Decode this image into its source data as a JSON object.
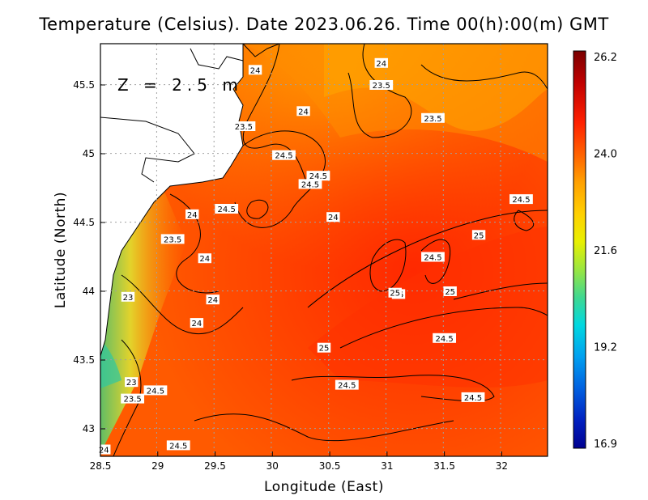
{
  "title": "Temperature (Celsius). Date 2023.06.26. Time 00(h):00(m) GMT",
  "depth_label": "Z = 2.5 m",
  "x_label": "Longitude (East)",
  "y_label": "Latitude (North)",
  "x_ticks": [
    {
      "value": 28.5,
      "label": "28.5"
    },
    {
      "value": 29,
      "label": "29"
    },
    {
      "value": 29.5,
      "label": "29.5"
    },
    {
      "value": 30,
      "label": "30"
    },
    {
      "value": 30.5,
      "label": "30.5"
    },
    {
      "value": 31,
      "label": "31"
    },
    {
      "value": 31.5,
      "label": "31.5"
    },
    {
      "value": 32,
      "label": "32"
    }
  ],
  "y_ticks": [
    {
      "value": 43,
      "label": "43"
    },
    {
      "value": 43.5,
      "label": "43.5"
    },
    {
      "value": 44,
      "label": "44"
    },
    {
      "value": 44.5,
      "label": "44.5"
    },
    {
      "value": 45,
      "label": "45"
    },
    {
      "value": 45.5,
      "label": "45.5"
    }
  ],
  "colorbar": {
    "ticks": [
      "26.2",
      "24.0",
      "21.6",
      "19.2",
      "16.9"
    ],
    "colors": [
      "#7a0000",
      "#c00000",
      "#ff2000",
      "#ff6a00",
      "#ffa000",
      "#ffd000",
      "#e8f000",
      "#9ae640",
      "#40d890",
      "#00d8e0",
      "#00a0f0",
      "#0060e0",
      "#0020c0",
      "#000090"
    ]
  },
  "chart_data": {
    "type": "heatmap",
    "variable": "Temperature (Celsius)",
    "xlim": [
      28.5,
      32.4
    ],
    "ylim": [
      42.8,
      45.8
    ],
    "color_range": [
      16.9,
      26.2
    ],
    "contour_labels": [
      {
        "lon": 29.85,
        "lat": 45.61,
        "value": "24"
      },
      {
        "lon": 29.75,
        "lat": 45.2,
        "value": "23.5"
      },
      {
        "lon": 30.1,
        "lat": 44.99,
        "value": "24.5"
      },
      {
        "lon": 30.4,
        "lat": 44.84,
        "value": "24.5"
      },
      {
        "lon": 30.33,
        "lat": 44.78,
        "value": "24.5"
      },
      {
        "lon": 29.6,
        "lat": 44.6,
        "value": "24.5"
      },
      {
        "lon": 29.3,
        "lat": 44.56,
        "value": "24"
      },
      {
        "lon": 30.27,
        "lat": 45.31,
        "value": "24"
      },
      {
        "lon": 30.95,
        "lat": 45.66,
        "value": "24"
      },
      {
        "lon": 30.95,
        "lat": 45.5,
        "value": "23.5"
      },
      {
        "lon": 31.4,
        "lat": 45.26,
        "value": "23.5"
      },
      {
        "lon": 32.17,
        "lat": 44.67,
        "value": "24.5"
      },
      {
        "lon": 30.53,
        "lat": 44.54,
        "value": "24"
      },
      {
        "lon": 31.8,
        "lat": 44.41,
        "value": "25"
      },
      {
        "lon": 31.4,
        "lat": 44.25,
        "value": "24.5"
      },
      {
        "lon": 29.13,
        "lat": 44.38,
        "value": "23.5"
      },
      {
        "lon": 29.41,
        "lat": 44.24,
        "value": "24"
      },
      {
        "lon": 29.48,
        "lat": 43.94,
        "value": "24"
      },
      {
        "lon": 28.74,
        "lat": 43.96,
        "value": "23"
      },
      {
        "lon": 29.34,
        "lat": 43.77,
        "value": "24"
      },
      {
        "lon": 31.1,
        "lat": 43.98,
        "value": "25"
      },
      {
        "lon": 31.07,
        "lat": 43.99,
        "value": "25"
      },
      {
        "lon": 31.55,
        "lat": 44.0,
        "value": "25"
      },
      {
        "lon": 31.5,
        "lat": 43.66,
        "value": "24.5"
      },
      {
        "lon": 30.45,
        "lat": 43.59,
        "value": "25"
      },
      {
        "lon": 28.77,
        "lat": 43.34,
        "value": "23"
      },
      {
        "lon": 28.98,
        "lat": 43.28,
        "value": "24.5"
      },
      {
        "lon": 28.78,
        "lat": 43.22,
        "value": "23.5"
      },
      {
        "lon": 30.65,
        "lat": 43.32,
        "value": "24.5"
      },
      {
        "lon": 31.75,
        "lat": 43.23,
        "value": "24.5"
      },
      {
        "lon": 29.18,
        "lat": 42.88,
        "value": "24.5"
      },
      {
        "lon": 28.53,
        "lat": 42.85,
        "value": "24"
      }
    ]
  }
}
